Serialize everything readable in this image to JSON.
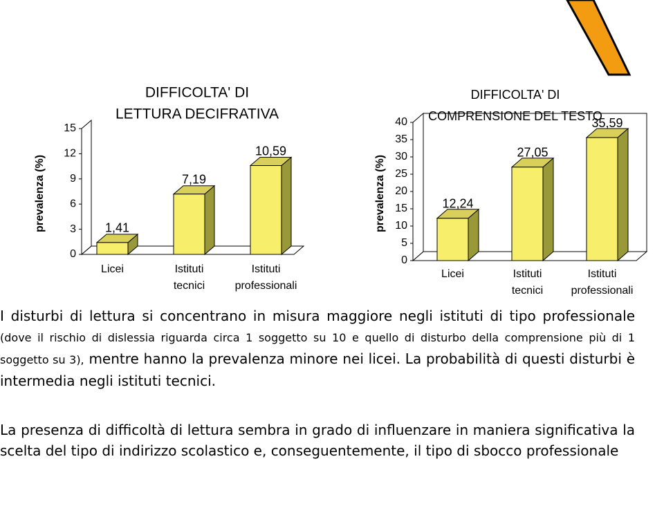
{
  "chart_data": [
    {
      "type": "bar3d",
      "title": [
        "DIFFICOLTA' DI",
        "LETTURA DECIFRATIVA"
      ],
      "ylabel": "prevalenza (%)",
      "categories": [
        [
          "Licei"
        ],
        [
          "Istituti",
          "tecnici"
        ],
        [
          "Istituti",
          "professionali"
        ]
      ],
      "values": [
        1.41,
        7.19,
        10.59
      ],
      "value_labels": [
        "1,41",
        "7,19",
        "10,59"
      ],
      "color": "#f7ef6b",
      "ylim": [
        0,
        15
      ],
      "yticks": [
        0,
        3,
        6,
        9,
        12,
        15
      ],
      "grid": false
    },
    {
      "type": "bar3d",
      "title": [
        "DIFFICOLTA' DI",
        "COMPRENSIONE DEL TESTO"
      ],
      "ylabel": "prevalenza (%)",
      "categories": [
        [
          "Licei"
        ],
        [
          "Istituti",
          "tecnici"
        ],
        [
          "Istituti",
          "professionali"
        ]
      ],
      "values": [
        12.24,
        27.05,
        35.59
      ],
      "value_labels": [
        "12,24",
        "27,05",
        "35,59"
      ],
      "color": "#f7ef6b",
      "ylim": [
        0,
        40
      ],
      "yticks": [
        0,
        5,
        10,
        15,
        20,
        25,
        30,
        35,
        40
      ],
      "grid": false
    }
  ],
  "text": {
    "p1a": "I disturbi di lettura si concentrano in misura maggiore negli istituti di tipo professionale",
    "p1b": "(dove il rischio di dislessia riguarda circa 1 soggetto su 10 e quello di disturbo della comprensione più di 1 soggetto su 3),",
    "p1c": "mentre hanno la prevalenza minore nei licei. La probabilità di questi disturbi è intermedia negli istituti tecnici.",
    "p2": "La presenza di difficoltà di lettura sembra in grado di influenzare in maniera significativa la scelta del tipo di indirizzo scolastico e, conseguentemente, il tipo di sbocco professionale"
  }
}
